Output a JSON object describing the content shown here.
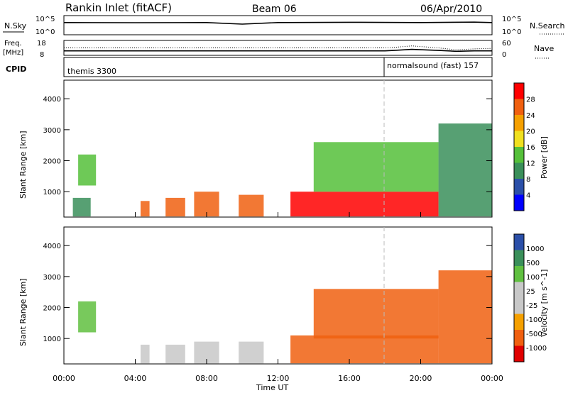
{
  "header": {
    "title": "Rankin Inlet (fitACF)",
    "beam": "Beam 06",
    "date": "06/Apr/2010"
  },
  "summary": {
    "nsky_label": "N.Sky",
    "nsearch_label": "N.Search",
    "freq_label_1": "Freq.",
    "freq_label_2": "[MHz]",
    "nave_label": "Nave",
    "cpid_label": "CPID",
    "nsky_ticks": [
      "10^5",
      "10^0"
    ],
    "nsearch_ticks": [
      "10^5",
      "10^0"
    ],
    "freq_ticks": [
      "18",
      "8"
    ],
    "nave_ticks": [
      "60",
      "0"
    ],
    "cpid_segments": [
      {
        "label": "themis 3300",
        "start_hour": 0
      },
      {
        "label": "normalsound (fast) 157",
        "start_hour": 18
      }
    ]
  },
  "power_panel": {
    "ylabel": "Slant Range [km]",
    "colorbar_label": "Power [dB]",
    "colorbar_ticks": [
      "28",
      "24",
      "20",
      "16",
      "12",
      "8",
      "4"
    ]
  },
  "velocity_panel": {
    "ylabel": "Slant Range [km]",
    "colorbar_label": "Velocity [m s^-1]",
    "colorbar_ticks": [
      "1000",
      "500",
      "100",
      "25",
      "-25",
      "-100",
      "-500",
      "-1000"
    ]
  },
  "x_axis": {
    "label": "Time UT",
    "ticks": [
      "00:00",
      "04:00",
      "08:00",
      "12:00",
      "16:00",
      "20:00",
      "00:00"
    ]
  },
  "colors": {
    "power_scale": [
      "#0000ff",
      "#2b4fa8",
      "#3a8f5a",
      "#55c03a",
      "#f0e020",
      "#f5a000",
      "#f06010",
      "#ff0000"
    ],
    "velocity_scale": [
      "#e00000",
      "#f06010",
      "#f5a000",
      "#c8c8c8",
      "#c8c8c8",
      "#60c040",
      "#3a8f5a",
      "#2b4fa8"
    ]
  },
  "chart_data": [
    {
      "type": "line",
      "title": "Rankin Inlet (fitACF)",
      "series": [
        {
          "name": "N.Sky",
          "x": [
            0,
            4,
            8,
            10,
            12,
            16,
            20,
            23,
            24
          ],
          "y": [
            1500,
            1400,
            1500,
            600,
            1500,
            1800,
            1500,
            2000,
            1500
          ]
        }
      ]
    },
    {
      "type": "line",
      "series": [
        {
          "name": "Freq.",
          "x": [
            0,
            18,
            18.5,
            19.5,
            21,
            22,
            23,
            24
          ],
          "y": [
            11,
            11,
            11.3,
            12,
            11.3,
            10.7,
            11,
            11
          ]
        },
        {
          "name": "Nave",
          "x": [
            0,
            18,
            18.5,
            19.5,
            21,
            22,
            23,
            24
          ],
          "y": [
            30,
            30,
            32,
            38,
            30,
            22,
            26,
            28
          ]
        }
      ]
    },
    {
      "type": "heatmap",
      "xlabel": "Time UT",
      "ylabel": "Slant Range [km]",
      "xlim": [
        0,
        24
      ],
      "ylim": [
        180,
        4600
      ],
      "colorbar": "Power [dB]",
      "zlim": [
        0,
        30
      ],
      "regions": [
        {
          "x": [
            0.8,
            1.8
          ],
          "y": [
            1200,
            2200
          ],
          "power": 12
        },
        {
          "x": [
            0.5,
            1.5
          ],
          "y": [
            200,
            800
          ],
          "power": 10
        },
        {
          "x": [
            4.3,
            4.8
          ],
          "y": [
            200,
            700
          ],
          "power": 24
        },
        {
          "x": [
            5.7,
            6.8
          ],
          "y": [
            200,
            800
          ],
          "power": 24
        },
        {
          "x": [
            7.3,
            8.7
          ],
          "y": [
            200,
            1000
          ],
          "power": 26
        },
        {
          "x": [
            9.8,
            11.2
          ],
          "y": [
            200,
            900
          ],
          "power": 26
        },
        {
          "x": [
            12.7,
            21.0
          ],
          "y": [
            200,
            1000
          ],
          "power": 28
        },
        {
          "x": [
            14.0,
            21.0
          ],
          "y": [
            1000,
            2600
          ],
          "power": 12
        },
        {
          "x": [
            21.0,
            24.0
          ],
          "y": [
            200,
            3200
          ],
          "power": 8
        }
      ]
    },
    {
      "type": "heatmap",
      "xlabel": "Time UT",
      "ylabel": "Slant Range [km]",
      "xlim": [
        0,
        24
      ],
      "ylim": [
        180,
        4600
      ],
      "colorbar": "Velocity [m s^-1]",
      "zlim": [
        -1000,
        1000
      ],
      "regions": [
        {
          "x": [
            0.8,
            1.8
          ],
          "y": [
            1200,
            2200
          ],
          "velocity": 500
        },
        {
          "x": [
            4.3,
            4.8
          ],
          "y": [
            200,
            800
          ],
          "velocity": 100
        },
        {
          "x": [
            5.7,
            6.8
          ],
          "y": [
            200,
            800
          ],
          "velocity": 100
        },
        {
          "x": [
            7.3,
            8.7
          ],
          "y": [
            200,
            900
          ],
          "velocity": 100
        },
        {
          "x": [
            9.8,
            11.2
          ],
          "y": [
            200,
            900
          ],
          "velocity": 100
        },
        {
          "x": [
            12.7,
            21.0
          ],
          "y": [
            200,
            1100
          ],
          "velocity": -300
        },
        {
          "x": [
            14.0,
            21.0
          ],
          "y": [
            1000,
            2600
          ],
          "velocity": -200
        },
        {
          "x": [
            21.0,
            24.0
          ],
          "y": [
            200,
            3200
          ],
          "velocity": -100
        }
      ]
    }
  ]
}
